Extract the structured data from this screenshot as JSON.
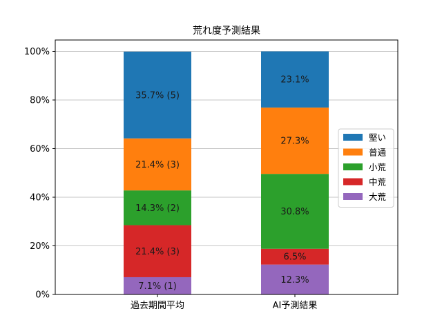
{
  "chart_data": {
    "type": "bar",
    "stacked": true,
    "title": "荒れ度予測結果",
    "xlabel": "",
    "ylabel": "",
    "categories": [
      "過去期間平均",
      "AI予測結果"
    ],
    "ylim": [
      0,
      100
    ],
    "yticks": [
      0,
      20,
      40,
      60,
      80,
      100
    ],
    "ytick_labels": [
      "0%",
      "20%",
      "40%",
      "60%",
      "80%",
      "100%"
    ],
    "grid": "horizontal",
    "legend_position": "right",
    "series": [
      {
        "name": "大荒",
        "color": "#9467bd",
        "values": [
          7.1,
          12.3
        ],
        "labels": [
          "7.1% (1)",
          "12.3%"
        ]
      },
      {
        "name": "中荒",
        "color": "#d62728",
        "values": [
          21.4,
          6.5
        ],
        "labels": [
          "21.4% (3)",
          "6.5%"
        ]
      },
      {
        "name": "小荒",
        "color": "#2ca02c",
        "values": [
          14.3,
          30.8
        ],
        "labels": [
          "14.3% (2)",
          "30.8%"
        ]
      },
      {
        "name": "普通",
        "color": "#ff7f0e",
        "values": [
          21.4,
          27.3
        ],
        "labels": [
          "21.4% (3)",
          "27.3%"
        ]
      },
      {
        "name": "堅い",
        "color": "#1f77b4",
        "values": [
          35.7,
          23.1
        ],
        "labels": [
          "35.7% (5)",
          "23.1%"
        ]
      }
    ],
    "legend_order": [
      "堅い",
      "普通",
      "小荒",
      "中荒",
      "大荒"
    ]
  }
}
